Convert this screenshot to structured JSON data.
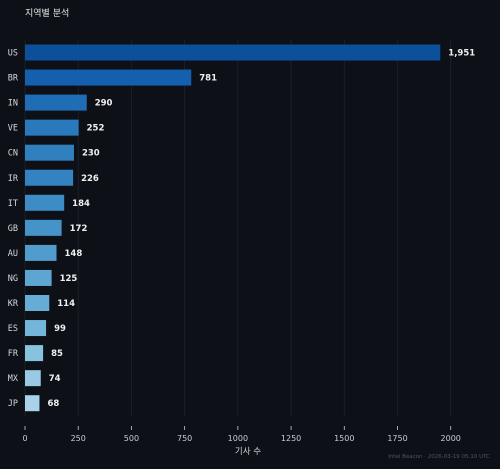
{
  "chart_data": {
    "type": "bar",
    "orientation": "horizontal",
    "title": "지역별 분석",
    "xlabel": "기사 수",
    "ylabel": "",
    "xlim": [
      0,
      2100
    ],
    "xticks": [
      0,
      250,
      500,
      750,
      1000,
      1250,
      1500,
      1750,
      2000
    ],
    "grid": true,
    "categories": [
      "US",
      "BR",
      "IN",
      "VE",
      "CN",
      "IR",
      "IT",
      "GB",
      "AU",
      "NG",
      "KR",
      "ES",
      "FR",
      "MX",
      "JP"
    ],
    "values": [
      1951,
      781,
      290,
      252,
      230,
      226,
      184,
      172,
      148,
      125,
      114,
      99,
      85,
      74,
      68
    ],
    "value_labels": [
      "1,951",
      "781",
      "290",
      "252",
      "230",
      "226",
      "184",
      "172",
      "148",
      "125",
      "114",
      "99",
      "85",
      "74",
      "68"
    ],
    "colors": [
      "#0c4f9b",
      "#145fae",
      "#1f6db5",
      "#2a79bc",
      "#3080bf",
      "#3382c1",
      "#3d8cc6",
      "#4493c9",
      "#519ccd",
      "#5ea6d2",
      "#66acd5",
      "#74b6da",
      "#87c2df",
      "#98cae3",
      "#a9d2e8"
    ],
    "watermark": "Intel Beacon · 2026-03-19 05:10 UTC"
  }
}
